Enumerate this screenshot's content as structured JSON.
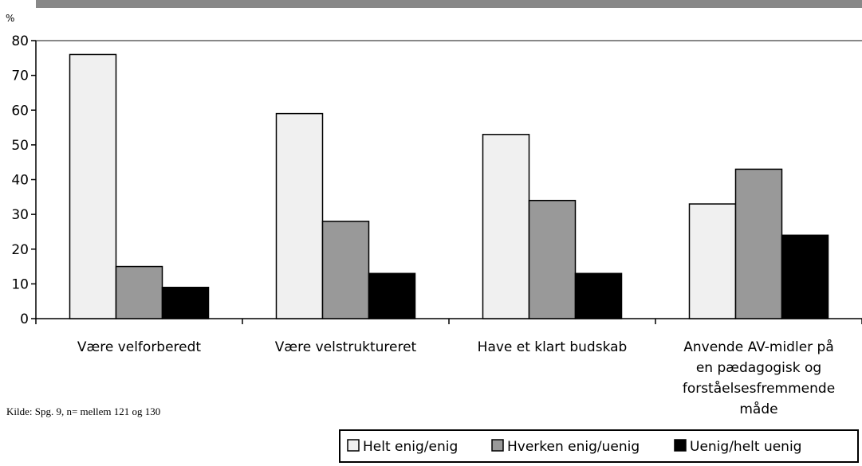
{
  "chart_data": {
    "type": "bar",
    "unit_label": "%",
    "ylim": [
      0,
      80
    ],
    "yticks": [
      0,
      10,
      20,
      30,
      40,
      50,
      60,
      70,
      80
    ],
    "grid": false,
    "legend_position": "bottom-right",
    "categories": [
      [
        "Være velforberedt"
      ],
      [
        "Være velstruktureret"
      ],
      [
        "Have et klart budskab"
      ],
      [
        "Anvende AV-midler på",
        "en pædagogisk og",
        "forståelsesfremmende",
        "måde"
      ]
    ],
    "series": [
      {
        "name": "Helt enig/enig",
        "color": "#f0f0f0",
        "values": [
          76,
          59,
          53,
          33
        ]
      },
      {
        "name": "Hverken enig/uenig",
        "color": "#999999",
        "values": [
          15,
          28,
          34,
          43
        ]
      },
      {
        "name": "Uenig/helt uenig",
        "color": "#000000",
        "values": [
          9,
          13,
          13,
          24
        ]
      }
    ],
    "source_note": "Kilde: Spg. 9, n= mellem 121 og 130"
  }
}
